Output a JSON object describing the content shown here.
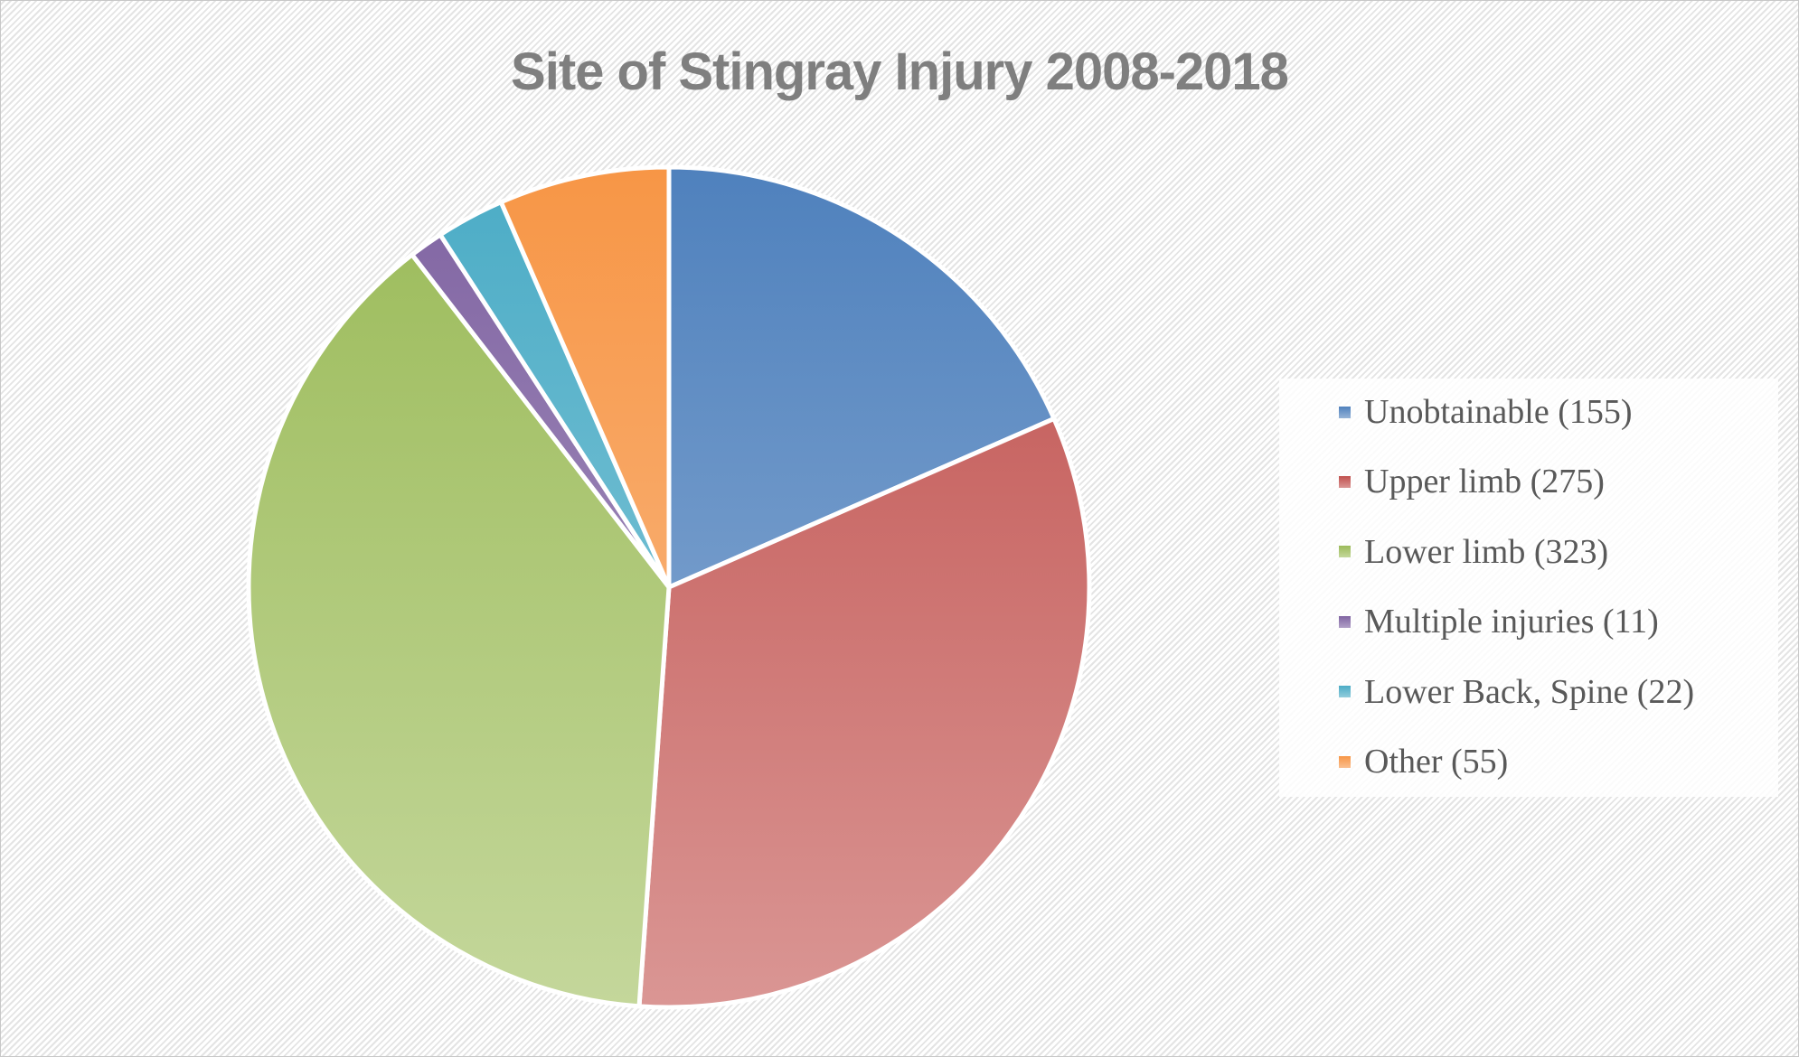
{
  "chart_data": {
    "type": "pie",
    "title": "Site of Stingray Injury 2008-2018",
    "categories": [
      "Unobtainable (155)",
      "Upper limb (275)",
      "Lower limb (323)",
      "Multiple injuries (11)",
      "Lower Back, Spine (22)",
      "Other (55)"
    ],
    "values": [
      155,
      275,
      323,
      11,
      22,
      55
    ],
    "colors": [
      "#4f81bd",
      "#c0504d",
      "#9bbb59",
      "#8064a2",
      "#4bacc6",
      "#f79646"
    ],
    "colors_light": [
      "#95b3d7",
      "#da9694",
      "#c4d79b",
      "#b1a0c7",
      "#92cddc",
      "#fabf8f"
    ],
    "legend_position": "right"
  }
}
